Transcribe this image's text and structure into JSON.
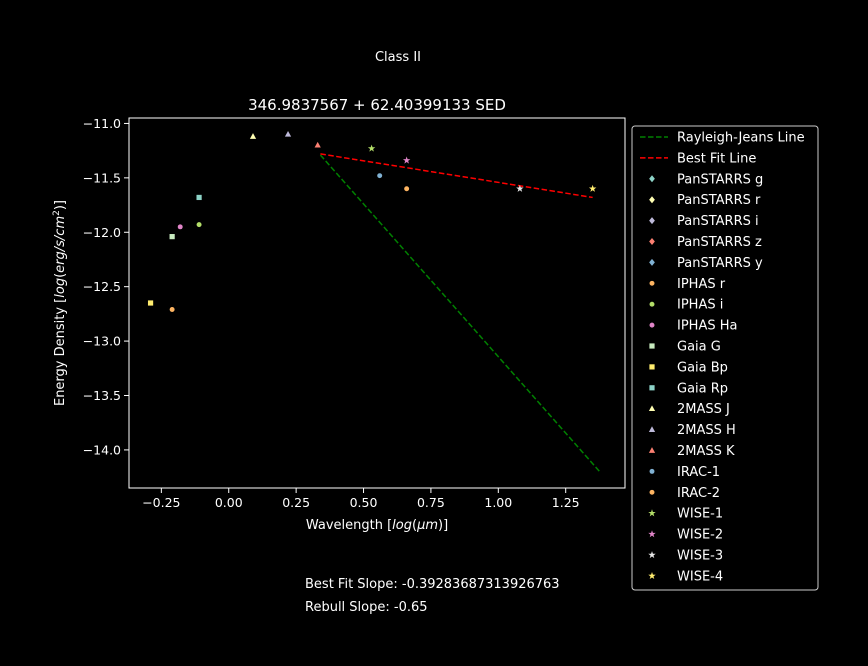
{
  "figure": {
    "suptitle": "Class II",
    "best_fit_slope_text": "Best Fit Slope: -0.39283687313926763",
    "rebull_slope_text": "Rebull Slope: -0.65"
  },
  "chart_data": {
    "type": "scatter",
    "title": "346.9837567 + 62.40399133 SED",
    "xlabel": "Wavelength [log(μm)]",
    "ylabel": "Energy Density [log(erg/s/cm²)]",
    "xlim": [
      -0.37,
      1.47
    ],
    "ylim": [
      -14.35,
      -10.95
    ],
    "xticks": [
      -0.25,
      0.0,
      0.25,
      0.5,
      0.75,
      1.0,
      1.25
    ],
    "xtick_labels": [
      "−0.25",
      "0.00",
      "0.25",
      "0.50",
      "0.75",
      "1.00",
      "1.25"
    ],
    "yticks": [
      -11.0,
      -11.5,
      -12.0,
      -12.5,
      -13.0,
      -13.5,
      -14.0
    ],
    "ytick_labels": [
      "−11.0",
      "−11.5",
      "−12.0",
      "−12.5",
      "−13.0",
      "−13.5",
      "−14.0"
    ],
    "grid": false,
    "legend_position": "outside-right",
    "lines": [
      {
        "name": "Rayleigh-Jeans Line",
        "color": "#008000",
        "dash": "dashed",
        "x": [
          0.34,
          1.38
        ],
        "y": [
          -11.29,
          -14.21
        ]
      },
      {
        "name": "Best Fit Line",
        "color": "#ff0000",
        "dash": "dashed",
        "x": [
          0.34,
          1.35
        ],
        "y": [
          -11.28,
          -11.68
        ]
      }
    ],
    "series": [
      {
        "name": "PanSTARRS g",
        "color": "#8dd3c7",
        "marker": "diamond",
        "x": [],
        "y": []
      },
      {
        "name": "PanSTARRS r",
        "color": "#ffffb3",
        "marker": "diamond",
        "x": [],
        "y": []
      },
      {
        "name": "PanSTARRS i",
        "color": "#bebada",
        "marker": "diamond",
        "x": [],
        "y": []
      },
      {
        "name": "PanSTARRS z",
        "color": "#fb8072",
        "marker": "diamond",
        "x": [],
        "y": []
      },
      {
        "name": "PanSTARRS y",
        "color": "#80b1d3",
        "marker": "diamond",
        "x": [],
        "y": []
      },
      {
        "name": "IPHAS r",
        "color": "#fdb462",
        "marker": "circle",
        "x": [
          -0.21
        ],
        "y": [
          -12.71
        ]
      },
      {
        "name": "IPHAS i",
        "color": "#b3de69",
        "marker": "circle",
        "x": [
          -0.11
        ],
        "y": [
          -11.93
        ]
      },
      {
        "name": "IPHAS Ha",
        "color": "#e085c8",
        "marker": "circle",
        "x": [
          -0.18
        ],
        "y": [
          -11.95
        ]
      },
      {
        "name": "Gaia G",
        "color": "#c8ebbf",
        "marker": "square",
        "x": [
          -0.21
        ],
        "y": [
          -12.04
        ]
      },
      {
        "name": "Gaia Bp",
        "color": "#ffed6f",
        "marker": "square",
        "x": [
          -0.29
        ],
        "y": [
          -12.65
        ]
      },
      {
        "name": "Gaia Rp",
        "color": "#8dd3c7",
        "marker": "square",
        "x": [
          -0.11
        ],
        "y": [
          -11.68
        ]
      },
      {
        "name": "2MASS J",
        "color": "#ffffb3",
        "marker": "triangle",
        "x": [
          0.09
        ],
        "y": [
          -11.12
        ]
      },
      {
        "name": "2MASS H",
        "color": "#bebada",
        "marker": "triangle",
        "x": [
          0.22
        ],
        "y": [
          -11.1
        ]
      },
      {
        "name": "2MASS K",
        "color": "#fb8072",
        "marker": "triangle",
        "x": [
          0.33
        ],
        "y": [
          -11.2
        ]
      },
      {
        "name": "IRAC-1",
        "color": "#80b1d3",
        "marker": "circle",
        "x": [
          0.56
        ],
        "y": [
          -11.48
        ]
      },
      {
        "name": "IRAC-2",
        "color": "#fdb462",
        "marker": "circle",
        "x": [
          0.66
        ],
        "y": [
          -11.6
        ]
      },
      {
        "name": "WISE-1",
        "color": "#b3de69",
        "marker": "star",
        "x": [
          0.53
        ],
        "y": [
          -11.23
        ]
      },
      {
        "name": "WISE-2",
        "color": "#e085c8",
        "marker": "star",
        "x": [
          0.66
        ],
        "y": [
          -11.34
        ]
      },
      {
        "name": "WISE-3",
        "color": "#e8e8e8",
        "marker": "star",
        "x": [
          1.08
        ],
        "y": [
          -11.6
        ]
      },
      {
        "name": "WISE-4",
        "color": "#ffed6f",
        "marker": "star",
        "x": [
          1.35
        ],
        "y": [
          -11.6
        ]
      }
    ]
  }
}
